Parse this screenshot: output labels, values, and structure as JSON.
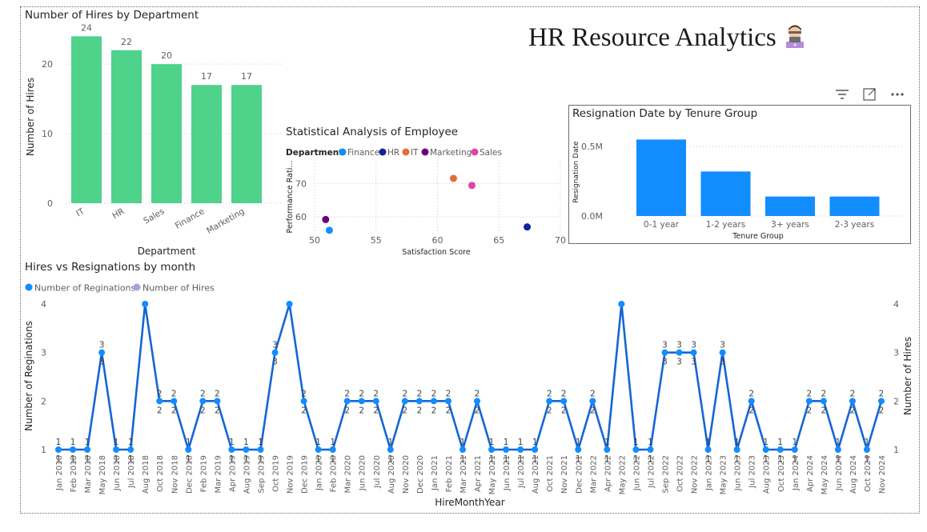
{
  "page": {
    "title": "HR Resource Analytics",
    "icon": "person-at-laptop-icon"
  },
  "toolbar": {
    "icons": [
      "filter-icon",
      "focus-mode-icon",
      "more-options-icon"
    ]
  },
  "colors": {
    "hires_bar": "#4FD28A",
    "resign_bar": "#118DFF",
    "line": "#1466D4",
    "marker": "#118DFF",
    "hires_marker": "#A1A6E0"
  },
  "chart_data": [
    {
      "id": "hires_by_dept",
      "type": "bar",
      "title": "Number of Hires by Department",
      "xlabel": "Department",
      "ylabel": "Number of Hires",
      "categories": [
        "IT",
        "HR",
        "Sales",
        "Finance",
        "Marketing"
      ],
      "values": [
        24,
        22,
        20,
        17,
        17
      ],
      "ylim": [
        0,
        26
      ],
      "yticks": [
        0,
        10,
        20
      ],
      "grid": true
    },
    {
      "id": "employee_scatter",
      "type": "scatter",
      "title": "Statistical Analysis of Employee",
      "xlabel": "Satisfaction Score",
      "ylabel": "Performance Rati...",
      "legend_title": "Department",
      "legend_position": "top-left",
      "xlim": [
        50,
        70
      ],
      "ylim": [
        55,
        77
      ],
      "xticks": [
        50,
        55,
        60,
        65,
        70
      ],
      "yticks": [
        60,
        70
      ],
      "series": [
        {
          "name": "Finance",
          "color": "#118DFF",
          "points": [
            [
              51.2,
              56.0
            ]
          ]
        },
        {
          "name": "HR",
          "color": "#12239E",
          "points": [
            [
              67.3,
              57.0
            ]
          ]
        },
        {
          "name": "IT",
          "color": "#E66C37",
          "points": [
            [
              61.3,
              71.5
            ]
          ]
        },
        {
          "name": "Marketing",
          "color": "#6B007B",
          "points": [
            [
              50.9,
              59.2
            ]
          ]
        },
        {
          "name": "Sales",
          "color": "#E044A7",
          "points": [
            [
              62.8,
              69.4
            ]
          ]
        }
      ]
    },
    {
      "id": "resignation_by_tenure",
      "type": "bar",
      "title": "Resignation Date by Tenure Group",
      "xlabel": "Tenure Group",
      "ylabel": "Resignation Date",
      "categories": [
        "0-1 year",
        "1-2 years",
        "3+ years",
        "2-3 years"
      ],
      "values": [
        550000,
        320000,
        140000,
        140000
      ],
      "ylim": [
        0,
        650000
      ],
      "yticks": [
        0,
        500000
      ],
      "ytick_labels": [
        "0.0M",
        "0.5M"
      ],
      "grid": true
    },
    {
      "id": "hires_vs_resignations",
      "type": "line",
      "title": "Hires vs Resignations by month",
      "xlabel": "HireMonthYear",
      "ylabel": "Number of Reginations",
      "y2label": "Number of Hires",
      "legend_position": "top-left",
      "ylim": [
        1,
        4
      ],
      "yticks": [
        1,
        2,
        3,
        4
      ],
      "categories": [
        "Jan 2018",
        "Feb 2018",
        "Mar 2018",
        "May 2018",
        "Jun 2018",
        "Jul 2018",
        "Aug 2018",
        "Oct 2018",
        "Nov 2018",
        "Dec 2018",
        "Feb 2019",
        "Mar 2019",
        "Apr 2019",
        "Aug 2019",
        "Sep 2019",
        "Oct 2019",
        "Nov 2019",
        "Dec 2019",
        "Jan 2020",
        "Feb 2020",
        "Mar 2020",
        "Jun 2020",
        "Jul 2020",
        "Aug 2020",
        "Nov 2020",
        "Dec 2020",
        "Jan 2021",
        "Feb 2021",
        "Mar 2021",
        "Apr 2021",
        "May 2021",
        "Jun 2021",
        "Jul 2021",
        "Aug 2021",
        "Oct 2021",
        "Nov 2021",
        "Dec 2021",
        "Mar 2022",
        "Apr 2022",
        "May 2022",
        "Jun 2022",
        "Jul 2022",
        "Sep 2022",
        "Oct 2022",
        "Nov 2022",
        "Jan 2023",
        "May 2023",
        "Jun 2023",
        "Jul 2023",
        "Aug 2023",
        "Oct 2023",
        "Jan 2024",
        "Apr 2024",
        "May 2024",
        "Jun 2024",
        "Aug 2024",
        "Oct 2024",
        "Nov 2024"
      ],
      "series": [
        {
          "name": "Number of Reginations",
          "values": [
            1,
            1,
            1,
            3,
            1,
            1,
            4,
            2,
            2,
            1,
            2,
            2,
            1,
            1,
            1,
            3,
            4,
            2,
            1,
            1,
            2,
            2,
            2,
            1,
            2,
            2,
            2,
            2,
            1,
            2,
            1,
            1,
            1,
            1,
            2,
            2,
            1,
            2,
            1,
            4,
            1,
            1,
            3,
            3,
            3,
            1,
            3,
            1,
            2,
            1,
            1,
            1,
            2,
            2,
            1,
            2,
            1,
            2
          ]
        },
        {
          "name": "Number of Hires",
          "values": [
            1,
            1,
            1,
            3,
            1,
            1,
            4,
            2,
            2,
            1,
            2,
            2,
            1,
            1,
            1,
            3,
            4,
            2,
            1,
            1,
            2,
            2,
            2,
            1,
            2,
            2,
            2,
            2,
            1,
            2,
            1,
            1,
            1,
            1,
            2,
            2,
            1,
            2,
            1,
            4,
            1,
            1,
            3,
            3,
            3,
            1,
            3,
            1,
            2,
            1,
            1,
            1,
            2,
            2,
            1,
            2,
            1,
            2
          ]
        }
      ]
    }
  ]
}
